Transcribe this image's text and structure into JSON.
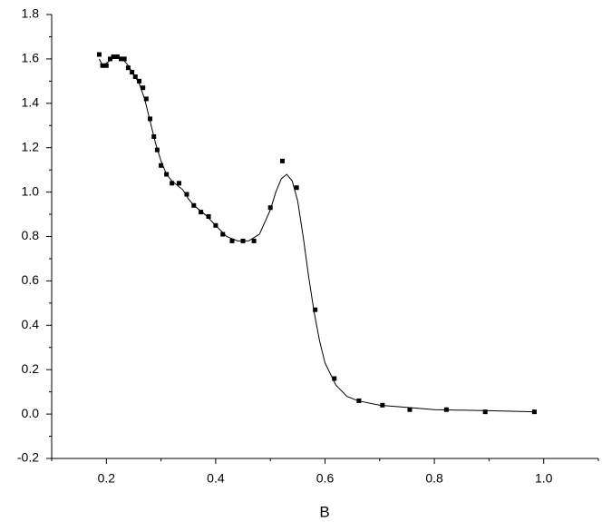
{
  "chart_data": {
    "type": "scatter",
    "x_label": "B",
    "xlim": [
      0.1,
      1.1
    ],
    "ylim": [
      -0.2,
      1.8
    ],
    "xticks": [
      0.2,
      0.4,
      0.6,
      0.8,
      {
        "value": 1,
        "label": "1.0"
      }
    ],
    "yticks": [
      -0.2,
      {
        "value": 0,
        "label": "0.0"
      },
      0.2,
      0.4,
      0.6,
      0.8,
      {
        "value": 1,
        "label": "1.0"
      },
      1.2,
      1.4,
      1.6,
      1.8
    ],
    "xminorticks": [
      0.1,
      0.3,
      0.5,
      0.7,
      0.9,
      1.1
    ],
    "yminorticks": [
      -0.1,
      0.1,
      0.3,
      0.5,
      0.7,
      0.9,
      1.1,
      1.3,
      1.5,
      1.7
    ],
    "grid": false,
    "series": [
      {
        "type": "scatter",
        "color": "#000000",
        "x": [
          0.187,
          0.193,
          0.2,
          0.207,
          0.213,
          0.22,
          0.227,
          0.233,
          0.24,
          0.247,
          0.253,
          0.26,
          0.267,
          0.273,
          0.28,
          0.287,
          0.293,
          0.3,
          0.31,
          0.32,
          0.333,
          0.347,
          0.36,
          0.373,
          0.387,
          0.4,
          0.413,
          0.43,
          0.45,
          0.47,
          0.5,
          0.522,
          0.548,
          0.582,
          0.617,
          0.662,
          0.705,
          0.755,
          0.822,
          0.893,
          0.983
        ],
        "values": [
          1.62,
          1.57,
          1.57,
          1.6,
          1.61,
          1.61,
          1.6,
          1.6,
          1.56,
          1.54,
          1.52,
          1.5,
          1.47,
          1.42,
          1.33,
          1.25,
          1.19,
          1.12,
          1.08,
          1.04,
          1.04,
          0.99,
          0.94,
          0.91,
          0.89,
          0.85,
          0.81,
          0.78,
          0.78,
          0.78,
          0.93,
          1.14,
          1.02,
          0.47,
          0.16,
          0.06,
          0.04,
          0.02,
          0.02,
          0.01,
          0.01
        ]
      },
      {
        "type": "line",
        "color": "#000000",
        "x": [
          0.187,
          0.193,
          0.2,
          0.21,
          0.22,
          0.23,
          0.24,
          0.25,
          0.26,
          0.27,
          0.28,
          0.29,
          0.3,
          0.31,
          0.32,
          0.33,
          0.34,
          0.35,
          0.36,
          0.38,
          0.4,
          0.42,
          0.44,
          0.46,
          0.48,
          0.5,
          0.51,
          0.52,
          0.53,
          0.54,
          0.55,
          0.56,
          0.57,
          0.58,
          0.59,
          0.6,
          0.62,
          0.64,
          0.66,
          0.7,
          0.75,
          0.8,
          0.9,
          0.983
        ],
        "values": [
          1.6,
          1.57,
          1.58,
          1.6,
          1.61,
          1.6,
          1.57,
          1.53,
          1.49,
          1.42,
          1.32,
          1.22,
          1.14,
          1.08,
          1.05,
          1.03,
          1.01,
          0.97,
          0.94,
          0.9,
          0.85,
          0.8,
          0.78,
          0.78,
          0.81,
          0.92,
          1.0,
          1.06,
          1.08,
          1.05,
          0.96,
          0.8,
          0.62,
          0.46,
          0.33,
          0.23,
          0.13,
          0.08,
          0.06,
          0.04,
          0.03,
          0.02,
          0.015,
          0.01
        ]
      }
    ]
  }
}
